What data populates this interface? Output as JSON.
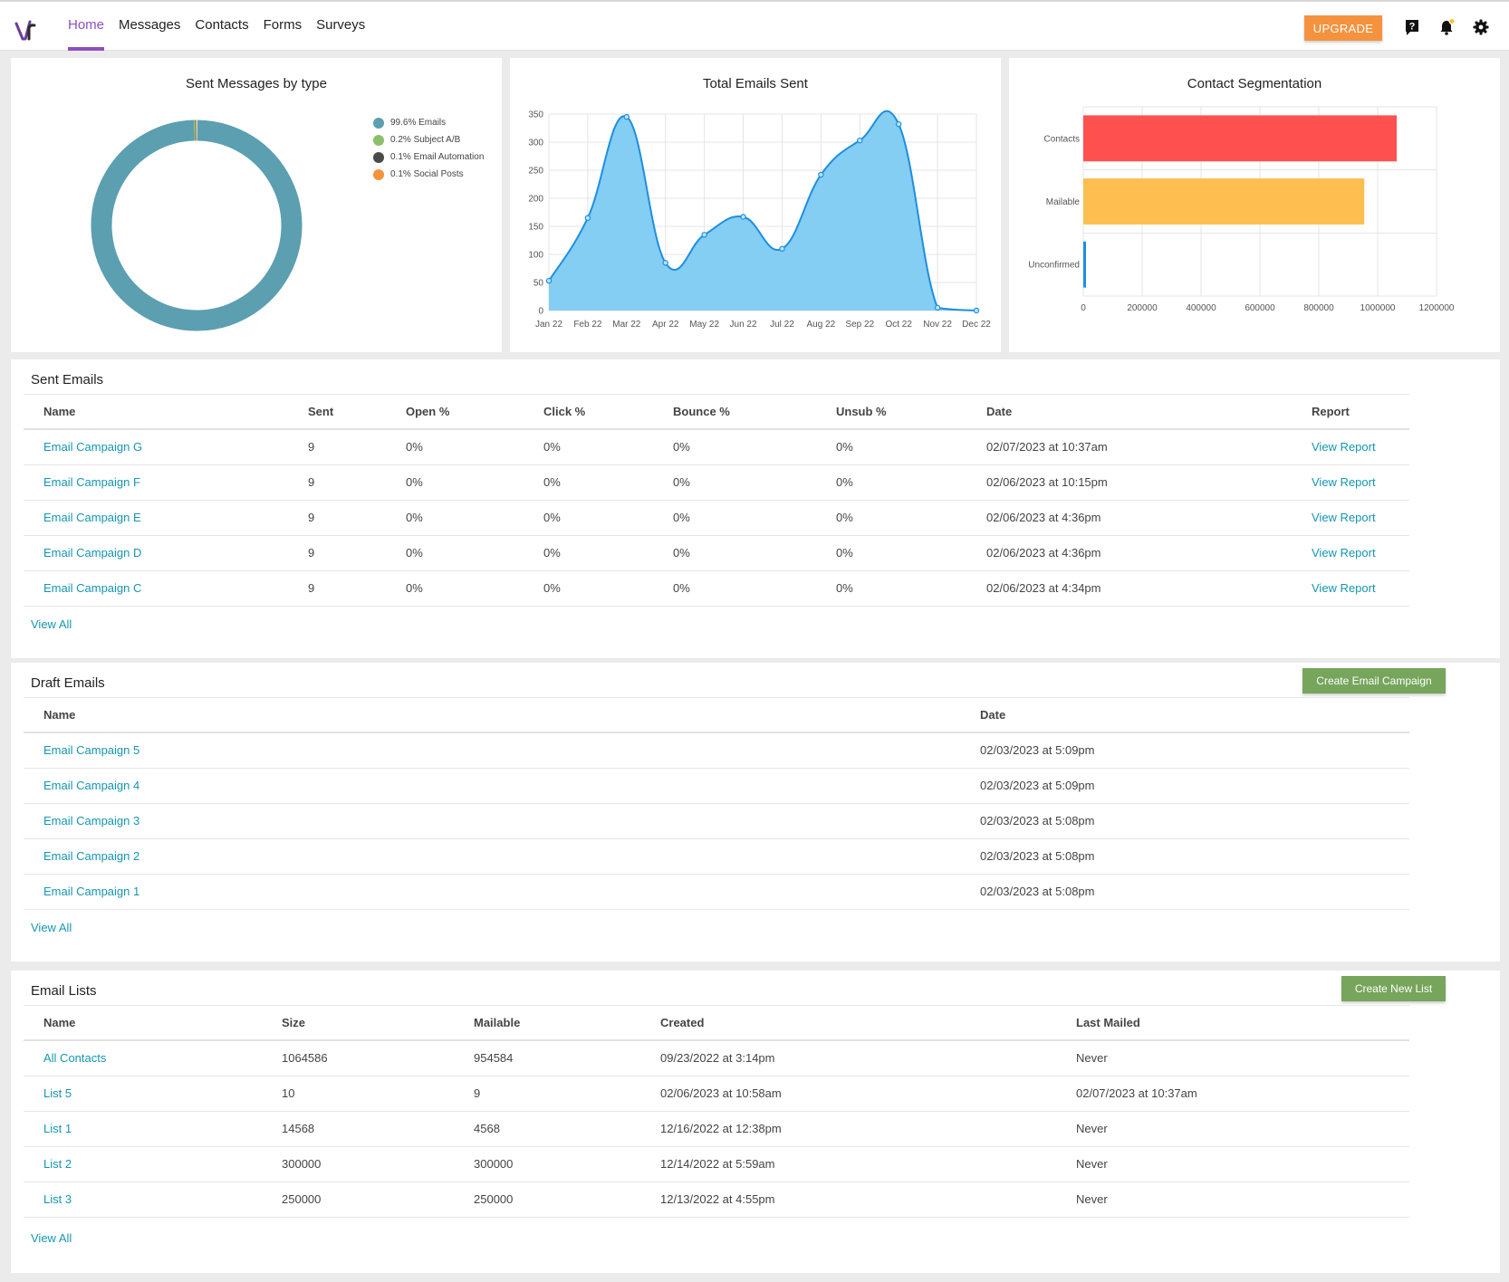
{
  "nav": {
    "items": [
      {
        "label": "Home",
        "active": true
      },
      {
        "label": "Messages",
        "active": false
      },
      {
        "label": "Contacts",
        "active": false
      },
      {
        "label": "Forms",
        "active": false
      },
      {
        "label": "Surveys",
        "active": false
      }
    ],
    "upgrade_label": "UPGRADE",
    "icons": [
      "help-icon",
      "bell-icon",
      "gear-icon"
    ],
    "accent": "#8e4fbf"
  },
  "charts": {
    "donut_title": "Sent Messages by type",
    "line_title": "Total Emails Sent",
    "bar_title": "Contact Segmentation"
  },
  "chart_data": [
    {
      "type": "pie",
      "title": "Sent Messages by type",
      "categories": [
        "Emails",
        "Subject A/B",
        "Email Automation",
        "Social Posts"
      ],
      "values": [
        99.6,
        0.2,
        0.1,
        0.1
      ],
      "legend_labels": [
        "99.6% Emails",
        "0.2% Subject A/B",
        "0.1% Email Automation",
        "0.1% Social Posts"
      ],
      "colors": [
        "#5b9fb1",
        "#8dbf6b",
        "#4a4a4a",
        "#f5923e"
      ],
      "legend": "top-right"
    },
    {
      "type": "area",
      "title": "Total Emails Sent",
      "x": [
        "Jan 22",
        "Feb 22",
        "Mar 22",
        "Apr 22",
        "May 22",
        "Jun 22",
        "Jul 22",
        "Aug 22",
        "Sep 22",
        "Oct 22",
        "Nov 22",
        "Dec 22"
      ],
      "values": [
        53,
        165,
        345,
        85,
        135,
        167,
        110,
        242,
        303,
        332,
        5,
        0
      ],
      "ylim": [
        0,
        350
      ],
      "yticks": [
        0,
        50,
        100,
        150,
        200,
        250,
        300,
        350
      ],
      "color": "#1d8fe0",
      "fill": "#84cdf3",
      "grid": true
    },
    {
      "type": "bar",
      "orientation": "horizontal",
      "title": "Contact Segmentation",
      "categories": [
        "Contacts",
        "Mailable",
        "Unconfirmed"
      ],
      "values": [
        1064586,
        954584,
        8000
      ],
      "colors": [
        "#ff5050",
        "#ffbe50",
        "#1d8fe0"
      ],
      "xlim": [
        0,
        1200000
      ],
      "xticks": [
        0,
        200000,
        400000,
        600000,
        800000,
        1000000,
        1200000
      ],
      "grid": true
    }
  ],
  "sent_emails": {
    "title": "Sent Emails",
    "columns": [
      "Name",
      "Sent",
      "Open %",
      "Click %",
      "Bounce %",
      "Unsub %",
      "Date",
      "Report"
    ],
    "rows": [
      [
        "Email Campaign G",
        "9",
        "0%",
        "0%",
        "0%",
        "0%",
        "02/07/2023 at 10:37am",
        "View Report"
      ],
      [
        "Email Campaign F",
        "9",
        "0%",
        "0%",
        "0%",
        "0%",
        "02/06/2023 at 10:15pm",
        "View Report"
      ],
      [
        "Email Campaign E",
        "9",
        "0%",
        "0%",
        "0%",
        "0%",
        "02/06/2023 at 4:36pm",
        "View Report"
      ],
      [
        "Email Campaign D",
        "9",
        "0%",
        "0%",
        "0%",
        "0%",
        "02/06/2023 at 4:36pm",
        "View Report"
      ],
      [
        "Email Campaign C",
        "9",
        "0%",
        "0%",
        "0%",
        "0%",
        "02/06/2023 at 4:34pm",
        "View Report"
      ]
    ],
    "view_all": "View All"
  },
  "draft_emails": {
    "title": "Draft Emails",
    "button": "Create Email Campaign",
    "columns": [
      "Name",
      "Date"
    ],
    "rows": [
      [
        "Email Campaign 5",
        "02/03/2023 at 5:09pm"
      ],
      [
        "Email Campaign 4",
        "02/03/2023 at 5:09pm"
      ],
      [
        "Email Campaign 3",
        "02/03/2023 at 5:08pm"
      ],
      [
        "Email Campaign 2",
        "02/03/2023 at 5:08pm"
      ],
      [
        "Email Campaign 1",
        "02/03/2023 at 5:08pm"
      ]
    ],
    "view_all": "View All"
  },
  "email_lists": {
    "title": "Email Lists",
    "button": "Create New List",
    "columns": [
      "Name",
      "Size",
      "Mailable",
      "Created",
      "Last Mailed"
    ],
    "rows": [
      [
        "All Contacts",
        "1064586",
        "954584",
        "09/23/2022 at 3:14pm",
        "Never"
      ],
      [
        "List 5",
        "10",
        "9",
        "02/06/2023 at 10:58am",
        "02/07/2023 at 10:37am"
      ],
      [
        "List 1",
        "14568",
        "4568",
        "12/16/2022 at 12:38pm",
        "Never"
      ],
      [
        "List 2",
        "300000",
        "300000",
        "12/14/2022 at 5:59am",
        "Never"
      ],
      [
        "List 3",
        "250000",
        "250000",
        "12/13/2022 at 4:55pm",
        "Never"
      ]
    ],
    "view_all": "View All"
  }
}
